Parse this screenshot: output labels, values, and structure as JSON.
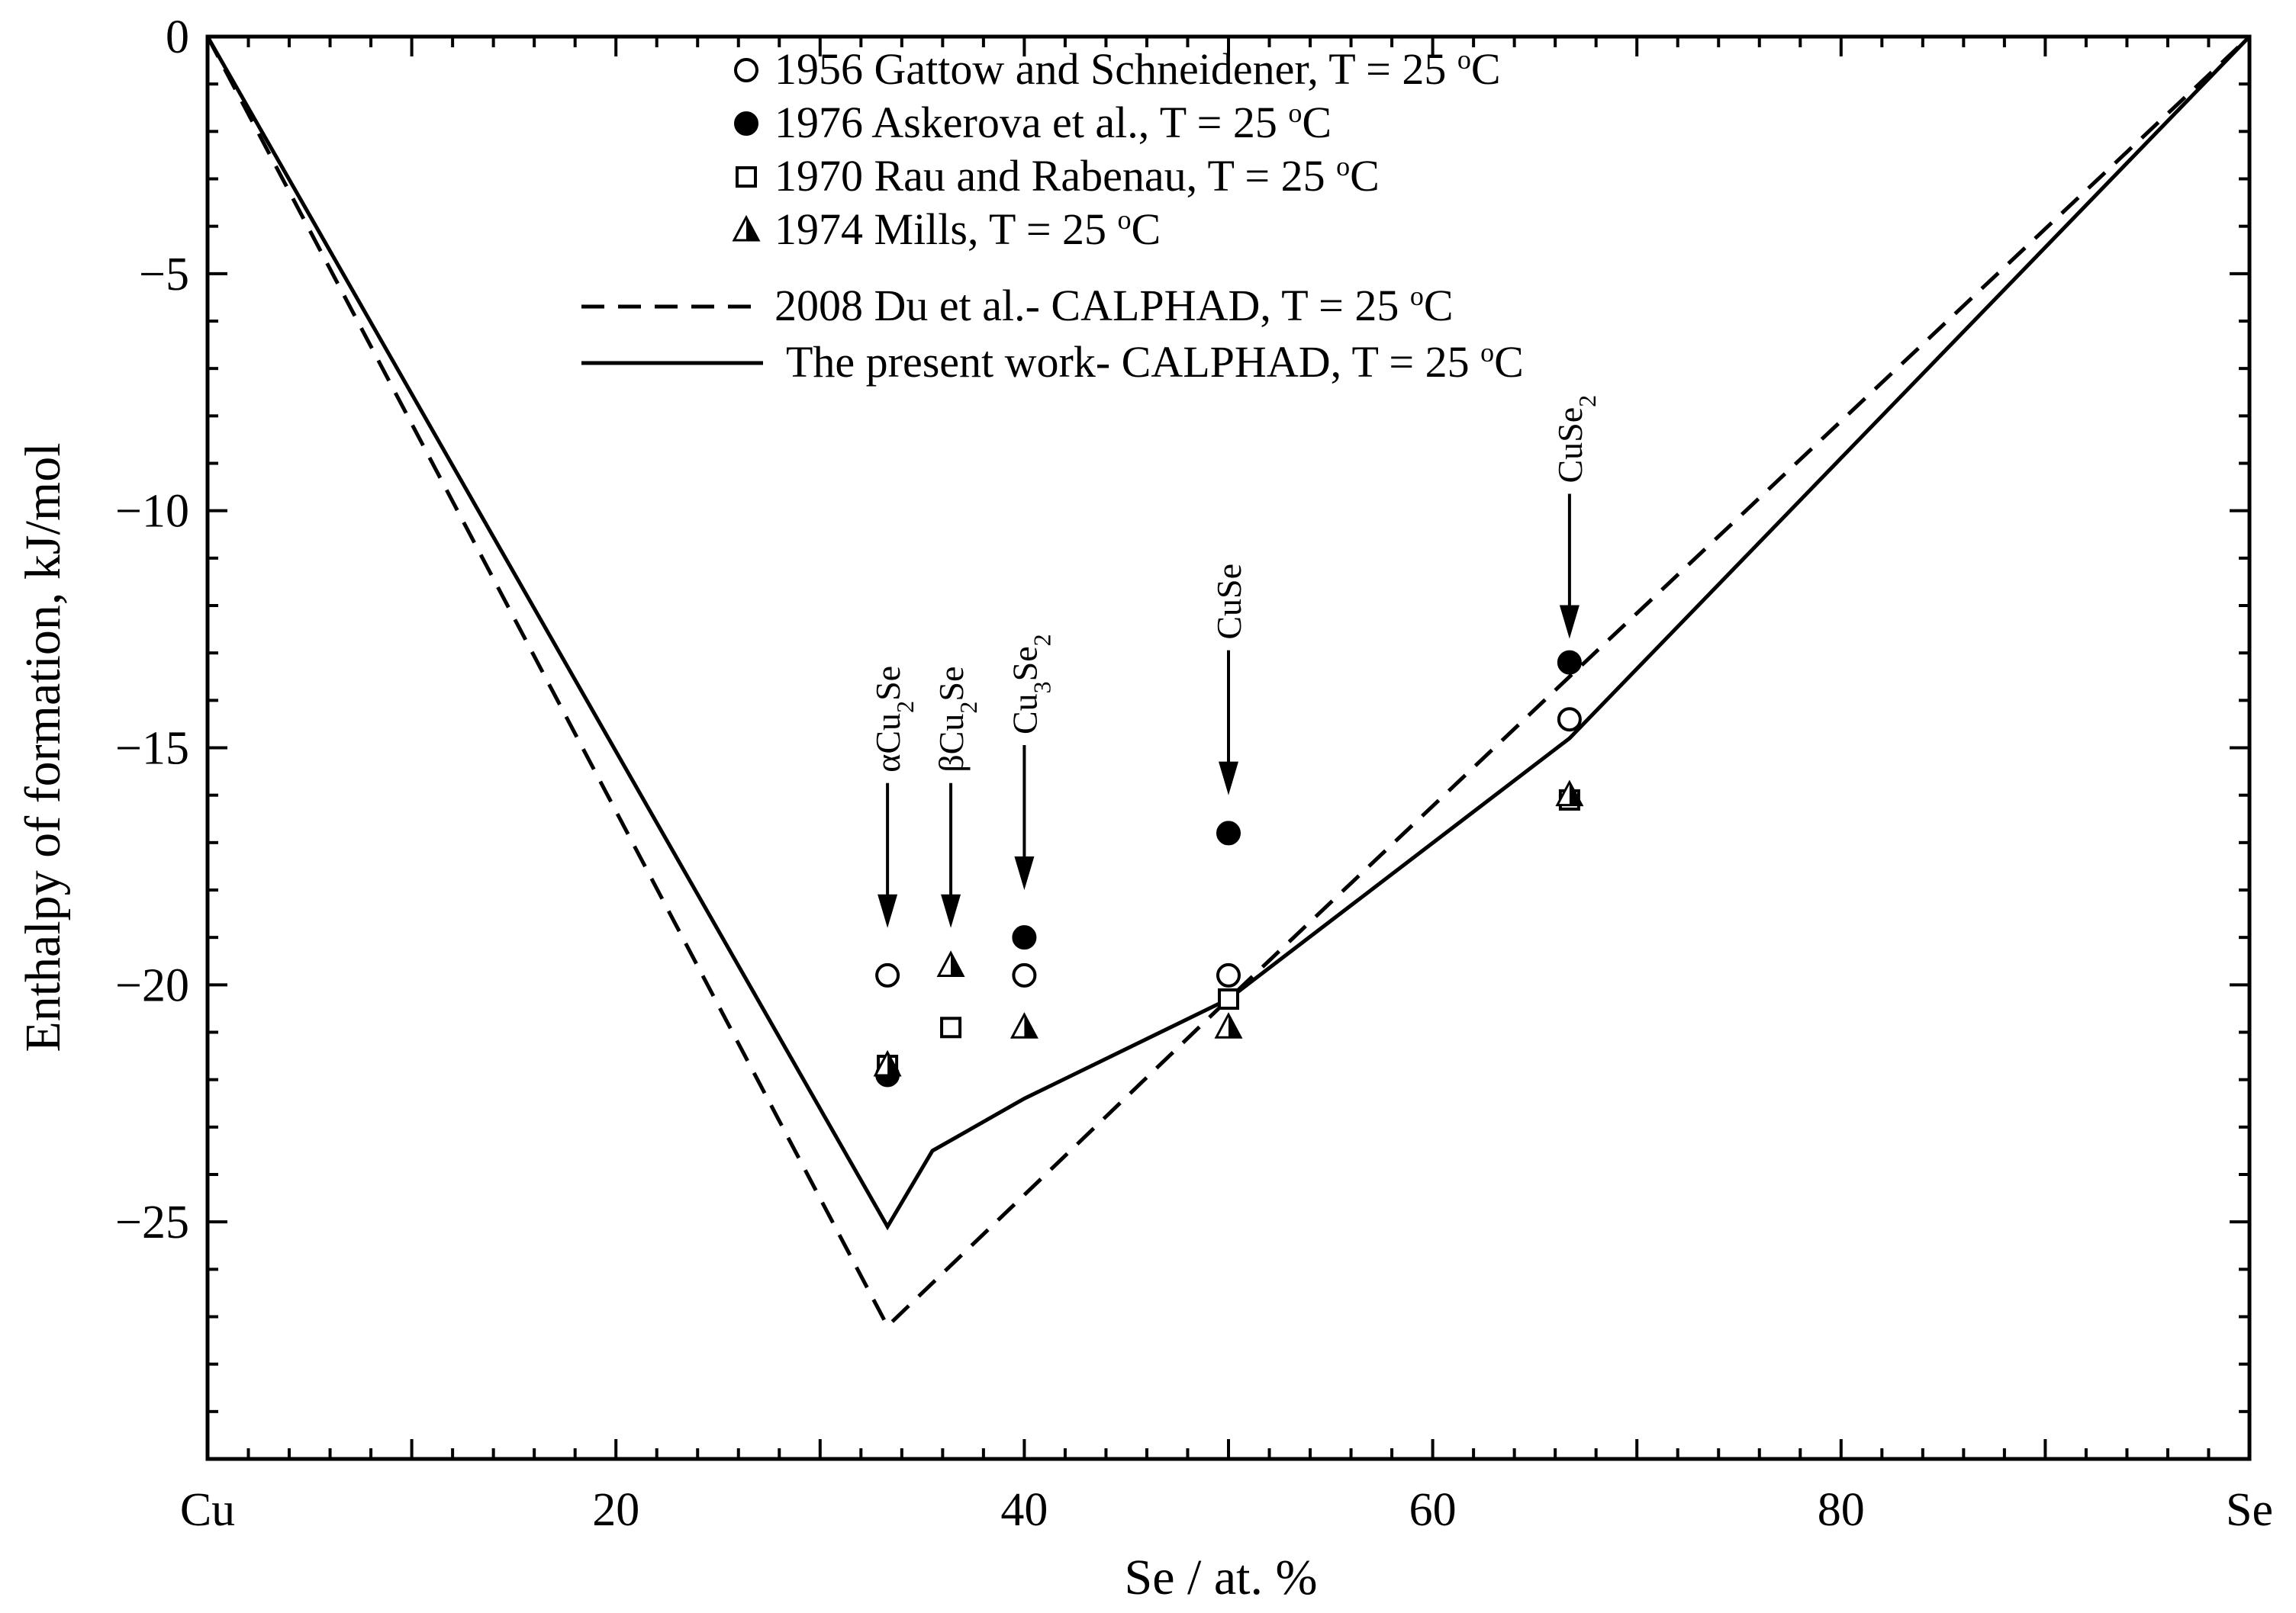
{
  "chart_data": {
    "type": "scatter",
    "xlabel": "Se / at. %",
    "ylabel": "Enthalpy of formation, kJ/mol",
    "xlim": [
      0,
      100
    ],
    "ylim": [
      -30,
      0
    ],
    "x_ticks": [
      {
        "value": 0,
        "label": "Cu"
      },
      {
        "value": 20,
        "label": "20"
      },
      {
        "value": 40,
        "label": "40"
      },
      {
        "value": 60,
        "label": "60"
      },
      {
        "value": 80,
        "label": "80"
      },
      {
        "value": 100,
        "label": "Se"
      }
    ],
    "y_ticks": [
      {
        "value": 0,
        "label": "0"
      },
      {
        "value": -5,
        "label": "−5"
      },
      {
        "value": -10,
        "label": "−10"
      },
      {
        "value": -15,
        "label": "−15"
      },
      {
        "value": -20,
        "label": "−20"
      },
      {
        "value": -25,
        "label": "−25"
      }
    ],
    "grid": false,
    "legend_position": "top-center",
    "series": [
      {
        "name": "1956 Gattow and Schneidener, T = 25 °C",
        "legend_main": "1956 Gattow and Schneidener, T = 25 ",
        "kind": "scatter",
        "marker": "open-circle",
        "points": [
          [
            33.3,
            -19.8
          ],
          [
            40,
            -19.8
          ],
          [
            50,
            -19.8
          ],
          [
            66.7,
            -14.4
          ]
        ]
      },
      {
        "name": "1976 Askerova et al., T = 25 °C",
        "legend_main": "1976 Askerova et al., T = 25 ",
        "kind": "scatter",
        "marker": "filled-circle",
        "points": [
          [
            33.3,
            -21.9
          ],
          [
            40,
            -19.0
          ],
          [
            50,
            -16.8
          ],
          [
            66.7,
            -13.2
          ]
        ]
      },
      {
        "name": "1970 Rau and Rabenau, T = 25 °C",
        "legend_main": "1970 Rau and Rabenau, T = 25 ",
        "kind": "scatter",
        "marker": "open-square",
        "points": [
          [
            33.3,
            -21.7
          ],
          [
            36.4,
            -20.9
          ],
          [
            50,
            -20.3
          ],
          [
            66.7,
            -16.1
          ]
        ]
      },
      {
        "name": "1974 Mills, T = 25 °C",
        "legend_main": "1974 Mills, T = 25 ",
        "kind": "scatter",
        "marker": "half-triangle",
        "points": [
          [
            33.3,
            -21.7
          ],
          [
            36.4,
            -19.6
          ],
          [
            40,
            -20.9
          ],
          [
            50,
            -20.9
          ],
          [
            66.7,
            -16.0
          ]
        ]
      },
      {
        "name": "2008 Du et al.- CALPHAD, T = 25 °C",
        "legend_main": "2008 Du et al.- CALPHAD, T = 25 ",
        "kind": "line",
        "style": "dashed",
        "points": [
          [
            0,
            0
          ],
          [
            33.3,
            -27.2
          ],
          [
            50,
            -20.3
          ],
          [
            66.7,
            -13.5
          ],
          [
            100,
            0
          ]
        ]
      },
      {
        "name": "The present work- CALPHAD, T = 25 °C",
        "legend_main": "The present work- CALPHAD, T = 25 ",
        "kind": "line",
        "style": "solid",
        "points": [
          [
            0,
            0
          ],
          [
            33.3,
            -25.1
          ],
          [
            35.5,
            -23.5
          ],
          [
            40,
            -22.4
          ],
          [
            50,
            -20.3
          ],
          [
            66.7,
            -14.8
          ],
          [
            100,
            0
          ]
        ]
      }
    ],
    "legend_superscript": "o",
    "legend_unit": "C",
    "annotations": [
      {
        "x": 33.3,
        "text": "αCu2Se",
        "parts": [
          [
            "αCu",
            ""
          ],
          [
            "2",
            "sub"
          ],
          [
            "Se",
            ""
          ]
        ],
        "arrow_to": -18.8
      },
      {
        "x": 36.4,
        "text": "βCu2Se",
        "parts": [
          [
            "βCu",
            ""
          ],
          [
            "2",
            "sub"
          ],
          [
            "Se",
            ""
          ]
        ],
        "arrow_to": -18.8
      },
      {
        "x": 40,
        "text": "Cu3Se2",
        "parts": [
          [
            "Cu",
            ""
          ],
          [
            "3",
            "sub"
          ],
          [
            "Se",
            ""
          ],
          [
            "2",
            "sub"
          ]
        ],
        "arrow_to": -18.0
      },
      {
        "x": 50,
        "text": "CuSe",
        "parts": [
          [
            "CuSe",
            ""
          ]
        ],
        "arrow_to": -16.0
      },
      {
        "x": 66.7,
        "text": "CuSe2",
        "parts": [
          [
            "CuSe",
            ""
          ],
          [
            "2",
            "sub"
          ]
        ],
        "arrow_to": -12.7
      }
    ]
  }
}
